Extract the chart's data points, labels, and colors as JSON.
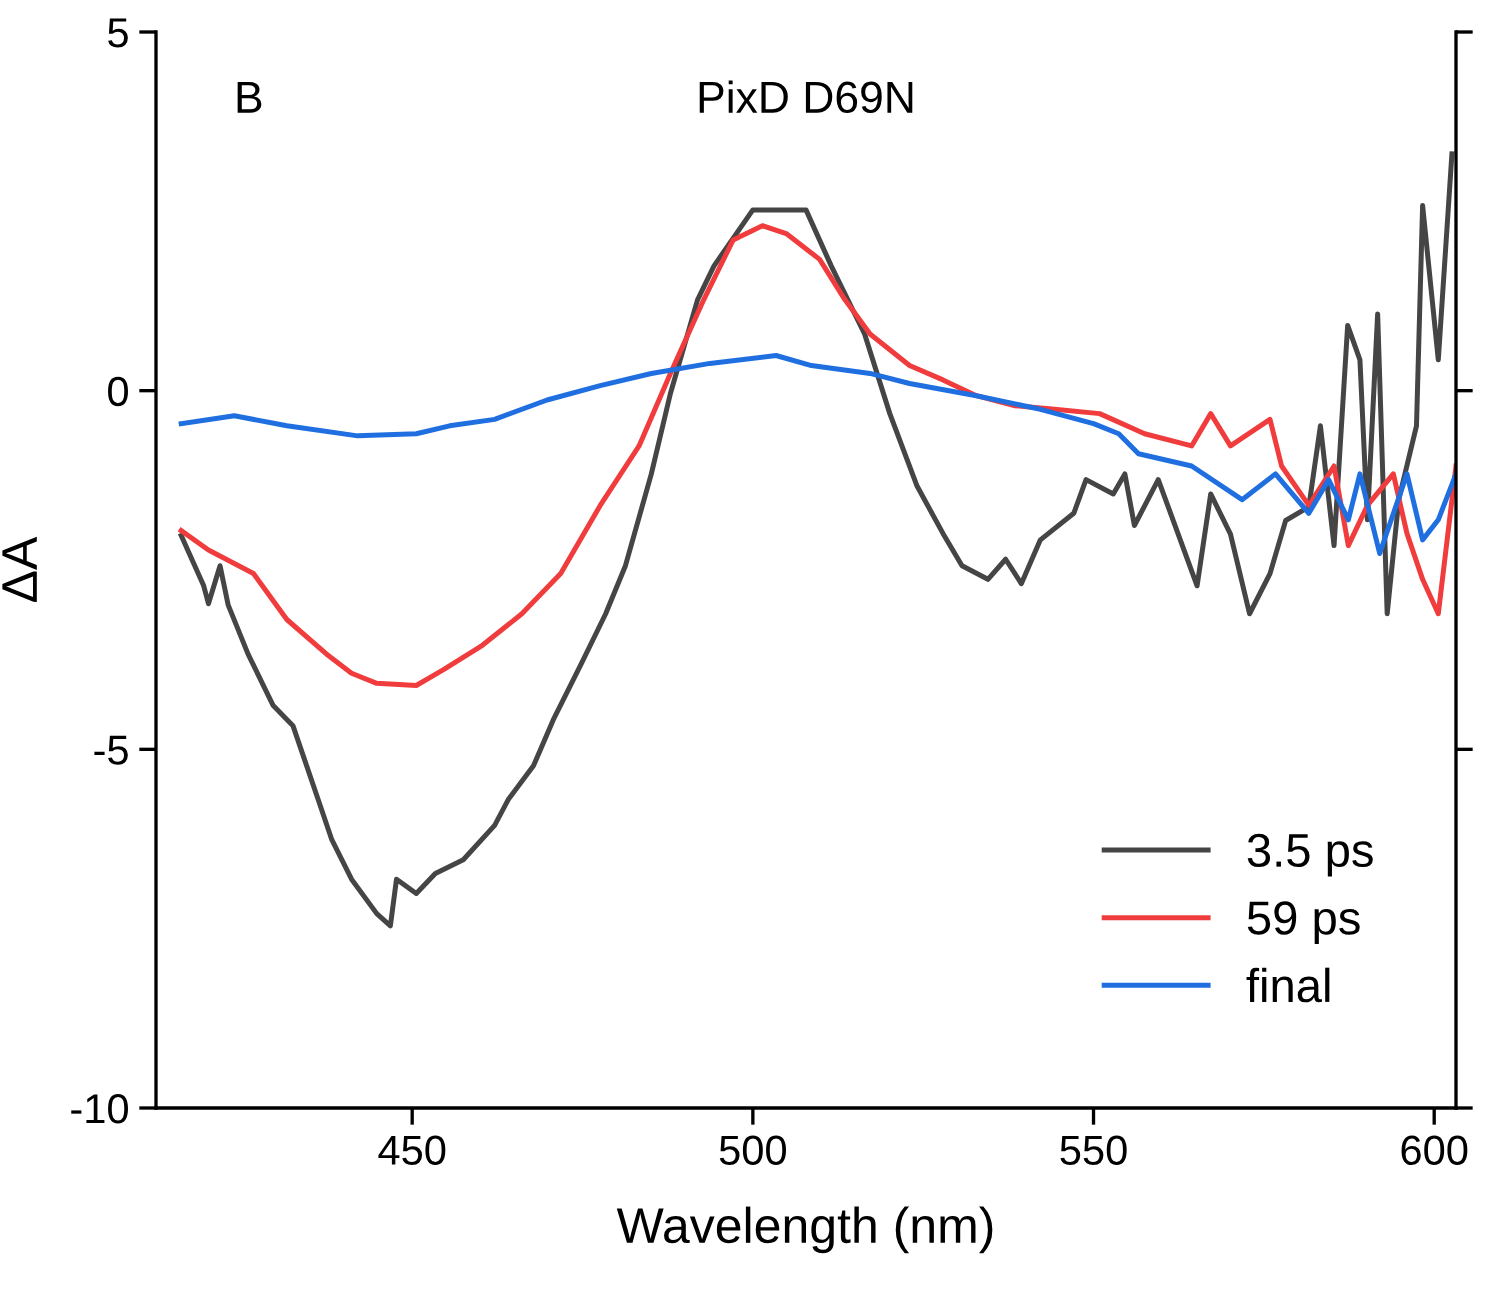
{
  "chart_data": {
    "type": "line",
    "xlabel": "Wavelength (nm)",
    "ylabel": "ΔA",
    "annotations": [
      "B",
      "PixD D69N"
    ],
    "xlim": [
      412.4,
      603.2
    ],
    "ylim": [
      -10,
      5
    ],
    "xticks": [
      450,
      500,
      550,
      600
    ],
    "yticks": [
      -10,
      -5,
      0,
      5
    ],
    "grid": false,
    "legend": "bottom right",
    "marker": "none",
    "line_style": "solid",
    "series": [
      {
        "name": "3.5 ps",
        "color": "#454545",
        "x": [
          416.1,
          419.4,
          420.1,
          421.8,
          423.0,
          425.9,
          429.6,
          432.5,
          436.2,
          438.2,
          441.1,
          444.8,
          446.8,
          447.7,
          450.6,
          453.4,
          457.5,
          462.1,
          464.1,
          467.8,
          470.7,
          474.7,
          478.4,
          481.3,
          485.1,
          487.9,
          491.9,
          494.3,
          500.0,
          504.0,
          507.8,
          511.5,
          516.4,
          520.1,
          524.1,
          527.9,
          530.7,
          534.5,
          537.1,
          539.4,
          542.2,
          547.1,
          548.9,
          552.9,
          554.6,
          556.0,
          559.5,
          565.2,
          567.2,
          570.1,
          572.9,
          575.9,
          578.2,
          581.6,
          583.3,
          585.3,
          587.3,
          589.1,
          590.2,
          591.7,
          593.1,
          594.8,
          597.4,
          598.3,
          600.6,
          602.6
        ],
        "values": [
          -2.02,
          -2.72,
          -2.97,
          -2.44,
          -2.99,
          -3.67,
          -4.39,
          -4.67,
          -5.7,
          -6.26,
          -6.81,
          -7.29,
          -7.46,
          -6.81,
          -7.01,
          -6.73,
          -6.54,
          -6.06,
          -5.7,
          -5.23,
          -4.59,
          -3.83,
          -3.11,
          -2.44,
          -1.16,
          -0.04,
          1.27,
          1.74,
          2.52,
          2.52,
          2.52,
          1.74,
          0.79,
          -0.32,
          -1.33,
          -1.99,
          -2.44,
          -2.63,
          -2.35,
          -2.69,
          -2.08,
          -1.71,
          -1.24,
          -1.44,
          -1.16,
          -1.88,
          -1.24,
          -2.72,
          -1.44,
          -2.0,
          -3.11,
          -2.55,
          -1.81,
          -1.62,
          -0.49,
          -2.16,
          0.91,
          0.43,
          -1.8,
          1.07,
          -3.11,
          -1.52,
          -0.49,
          2.58,
          0.43,
          3.3
        ]
      },
      {
        "name": "59 ps",
        "color": "#f03c3c",
        "x": [
          416.1,
          420.1,
          426.7,
          431.6,
          437.4,
          441.1,
          444.8,
          450.6,
          454.6,
          460.3,
          466.1,
          471.8,
          477.6,
          483.3,
          487.9,
          492.8,
          497.1,
          501.4,
          504.9,
          509.8,
          513.5,
          517.2,
          523.0,
          527.9,
          532.8,
          538.5,
          544.3,
          550.9,
          557.5,
          564.4,
          567.2,
          570.1,
          575.9,
          577.6,
          581.6,
          585.3,
          587.4,
          590.2,
          594.0,
          596.0,
          598.3,
          600.6,
          603.2
        ],
        "values": [
          -1.95,
          -2.22,
          -2.55,
          -3.19,
          -3.67,
          -3.94,
          -4.08,
          -4.11,
          -3.89,
          -3.55,
          -3.11,
          -2.55,
          -1.6,
          -0.77,
          0.24,
          1.27,
          2.1,
          2.3,
          2.19,
          1.83,
          1.27,
          0.79,
          0.35,
          0.15,
          -0.07,
          -0.21,
          -0.26,
          -0.32,
          -0.6,
          -0.77,
          -0.32,
          -0.77,
          -0.4,
          -1.05,
          -1.6,
          -1.05,
          -2.16,
          -1.6,
          -1.16,
          -1.99,
          -2.63,
          -3.11,
          -1.05
        ]
      },
      {
        "name": "final",
        "color": "#1f6fe0",
        "x": [
          416.1,
          423.9,
          431.6,
          442.0,
          450.6,
          455.5,
          462.1,
          469.8,
          477.6,
          485.1,
          493.7,
          503.4,
          508.6,
          517.2,
          523.0,
          532.8,
          542.2,
          550.0,
          553.7,
          556.6,
          564.4,
          571.8,
          576.7,
          581.6,
          584.5,
          587.4,
          589.1,
          592.0,
          596.0,
          598.3,
          600.6,
          603.2
        ],
        "values": [
          -0.46,
          -0.35,
          -0.49,
          -0.63,
          -0.6,
          -0.49,
          -0.4,
          -0.13,
          0.07,
          0.24,
          0.38,
          0.49,
          0.35,
          0.24,
          0.1,
          -0.07,
          -0.26,
          -0.46,
          -0.6,
          -0.88,
          -1.05,
          -1.52,
          -1.16,
          -1.71,
          -1.24,
          -1.8,
          -1.16,
          -2.27,
          -1.16,
          -2.08,
          -1.8,
          -1.16
        ]
      }
    ]
  }
}
